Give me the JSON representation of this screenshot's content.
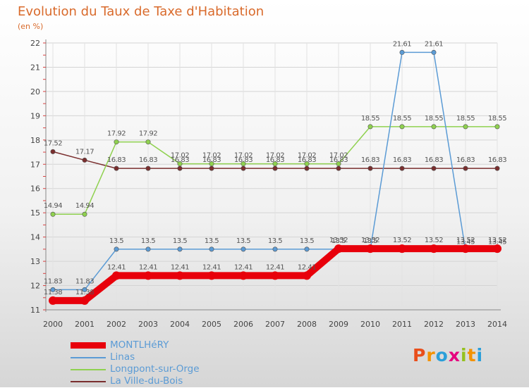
{
  "chart_data": {
    "type": "line",
    "title": "Evolution du Taux de Taxe d'Habitation",
    "subtitle": "(en %)",
    "x": [
      "2000",
      "2001",
      "2002",
      "2003",
      "2004",
      "2005",
      "2006",
      "2007",
      "2008",
      "2009",
      "2010",
      "2011",
      "2012",
      "2013",
      "2014"
    ],
    "ylim": [
      11,
      22
    ],
    "yticks": [
      11,
      12,
      13,
      14,
      15,
      16,
      17,
      18,
      19,
      20,
      21,
      22
    ],
    "grid": true,
    "legend_position": "bottom",
    "series": [
      {
        "name": "MONTLHéRY",
        "color": "#e8000b",
        "values": [
          11.38,
          11.38,
          12.41,
          12.41,
          12.41,
          12.41,
          12.41,
          12.41,
          12.41,
          13.52,
          13.52,
          13.52,
          13.52,
          13.52,
          13.52
        ],
        "labels": [
          "11.38",
          "11.38",
          "12.41",
          "12.41",
          "12.41",
          "12.41",
          "12.41",
          "12.41",
          "12.41",
          "13.52",
          "13.52",
          "13.52",
          "13.52",
          "13.52",
          "13.52"
        ]
      },
      {
        "name": "Linas",
        "color": "#5b9bd5",
        "values": [
          11.83,
          11.83,
          13.5,
          13.5,
          13.5,
          13.5,
          13.5,
          13.5,
          13.5,
          13.5,
          13.5,
          21.61,
          21.61,
          13.45,
          13.45
        ],
        "labels": [
          "11.83",
          "11.83",
          "13.5",
          "13.5",
          "13.5",
          "13.5",
          "13.5",
          "13.5",
          "13.5",
          "13.5",
          "13.5",
          "21.61",
          "21.61",
          "13.45",
          "13.45"
        ]
      },
      {
        "name": "Longpont-sur-Orge",
        "color": "#8fd14f",
        "values": [
          14.94,
          14.94,
          17.92,
          17.92,
          17.02,
          17.02,
          17.02,
          17.02,
          17.02,
          17.02,
          18.55,
          18.55,
          18.55,
          18.55,
          18.55
        ],
        "labels": [
          "14.94",
          "14.94",
          "17.92",
          "17.92",
          "17.02",
          "17.02",
          "17.02",
          "17.02",
          "17.02",
          "17.02",
          "18.55",
          "18.55",
          "18.55",
          "18.55",
          "18.55"
        ]
      },
      {
        "name": "La Ville-du-Bois",
        "color": "#7a2e2e",
        "values": [
          17.52,
          17.17,
          16.83,
          16.83,
          16.83,
          16.83,
          16.83,
          16.83,
          16.83,
          16.83,
          16.83,
          16.83,
          16.83,
          16.83,
          16.83
        ],
        "labels": [
          "17.52",
          "17.17",
          "16.83",
          "16.83",
          "16.83",
          "16.83",
          "16.83",
          "16.83",
          "16.83",
          "16.83",
          "16.83",
          "16.83",
          "16.83",
          "16.83",
          "16.83"
        ]
      }
    ]
  },
  "logo": {
    "letters": [
      "P",
      "r",
      "o",
      "x",
      "i",
      "t",
      "i"
    ],
    "colors": [
      "#e94e1b",
      "#f39200",
      "#2b9fd9",
      "#e6007e",
      "#95c11f",
      "#f39200",
      "#2b9fd9"
    ]
  }
}
